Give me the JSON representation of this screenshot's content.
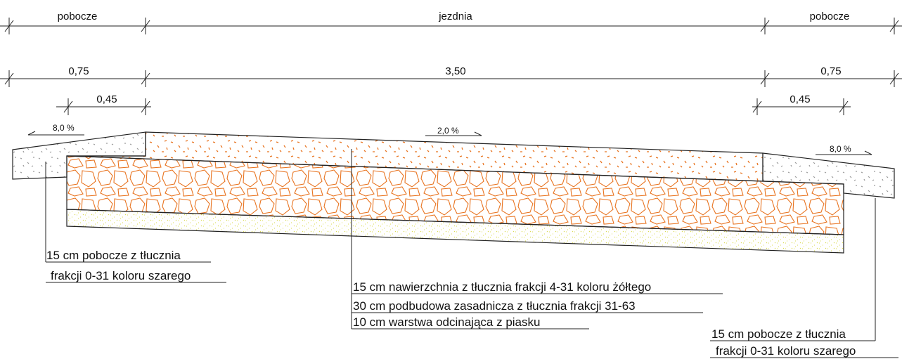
{
  "dimensions": {
    "zones": [
      "pobocze",
      "jezdnia",
      "pobocze"
    ],
    "widths": [
      "0,75",
      "3,50",
      "0,75"
    ],
    "inner": [
      "0,45",
      "0,45"
    ]
  },
  "slopes": [
    "8,0 %",
    "2,0 %",
    "8,0 %"
  ],
  "labels": {
    "left": [
      "15 cm pobocze z tłucznia",
      "frakcji 0-31 koloru szarego"
    ],
    "center": [
      "15 cm nawierzchnia z tłucznia frakcji 4-31 koloru żółtego",
      "30 cm podbudowa zasadnicza z tłucznia frakcji 31-63",
      "10 cm warstwa odcinająca z piasku"
    ],
    "right": [
      "15 cm pobocze z tłucznia",
      "frakcji 0-31 koloru szarego"
    ]
  }
}
